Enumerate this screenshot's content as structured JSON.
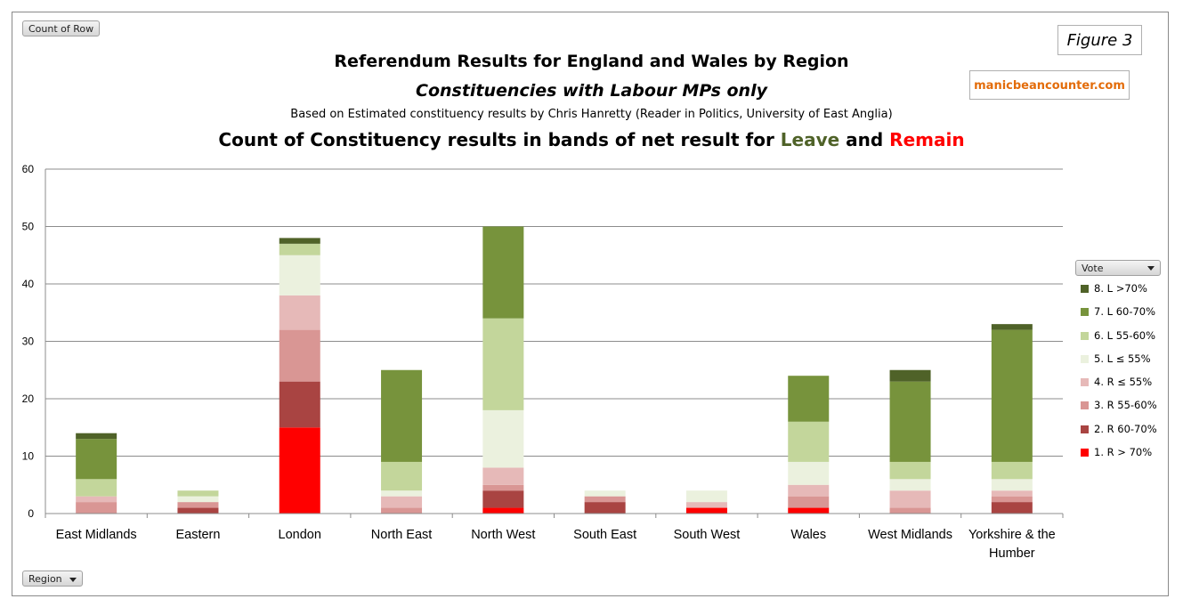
{
  "buttons": {
    "count_of_row": "Count of Row",
    "region": "Region",
    "vote": "Vote"
  },
  "figure_label": "Figure 3",
  "site": "manicbeancounter.com",
  "title_lines": {
    "line1": "Referendum Results for England and Wales by Region",
    "line2": "Constituencies with Labour MPs only",
    "line3": "Based on Estimated constituency results by Chris Hanretty (Reader in Politics, University of East Anglia)",
    "line4_prefix": "Count of Constituency results in bands of net result for ",
    "line4_leave": "Leave",
    "line4_and": " and ",
    "line4_remain": "Remain"
  },
  "colors": {
    "leave_word": "#4f6228",
    "remain_word": "#ff0000",
    "site": "#e36c0a"
  },
  "chart_data": {
    "type": "bar",
    "stacked": true,
    "categories": [
      "East Midlands",
      "Eastern",
      "London",
      "North East",
      "North West",
      "South East",
      "South West",
      "Wales",
      "West Midlands",
      "Yorkshire & the Humber"
    ],
    "ylim": [
      0,
      60
    ],
    "yticks": [
      0,
      10,
      20,
      30,
      40,
      50,
      60
    ],
    "grid": true,
    "legend_position": "right",
    "legend_title": "Vote",
    "series": [
      {
        "name": "1. R > 70%",
        "color": "#ff0000",
        "values": [
          0,
          0,
          15,
          0,
          1,
          0,
          1,
          1,
          0,
          0
        ]
      },
      {
        "name": "2. R 60-70%",
        "color": "#a94442",
        "values": [
          0,
          1,
          8,
          0,
          3,
          2,
          0,
          0,
          0,
          2
        ]
      },
      {
        "name": "3. R 55-60%",
        "color": "#d99694",
        "values": [
          2,
          1,
          9,
          1,
          1,
          1,
          0,
          2,
          1,
          1
        ]
      },
      {
        "name": "4. R ≤ 55%",
        "color": "#e6b9b8",
        "values": [
          1,
          0,
          6,
          2,
          3,
          0,
          1,
          2,
          3,
          1
        ]
      },
      {
        "name": "5. L ≤ 55%",
        "color": "#ebf1de",
        "values": [
          0,
          1,
          7,
          1,
          10,
          1,
          2,
          4,
          2,
          2
        ]
      },
      {
        "name": "6. L 55-60%",
        "color": "#c3d69b",
        "values": [
          3,
          1,
          2,
          5,
          16,
          0,
          0,
          7,
          3,
          3
        ]
      },
      {
        "name": "7. L 60-70%",
        "color": "#77933c",
        "values": [
          7,
          0,
          0,
          16,
          16,
          0,
          0,
          8,
          14,
          23
        ]
      },
      {
        "name": "8. L >70%",
        "color": "#4f6228",
        "values": [
          1,
          0,
          1,
          0,
          0,
          0,
          0,
          0,
          2,
          1
        ]
      }
    ]
  }
}
